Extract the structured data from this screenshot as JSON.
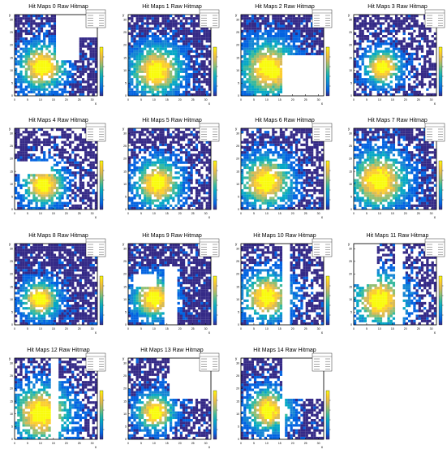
{
  "figure": {
    "panels": [
      {
        "title": "Hit Maps 0 Raw Hitmap"
      },
      {
        "title": "Hit Maps 1 Raw Hitmap"
      },
      {
        "title": "Hit Maps 2 Raw Hitmap"
      },
      {
        "title": "Hit Maps 3 Raw Hitmap"
      },
      {
        "title": "Hit Maps 4 Raw Hitmap"
      },
      {
        "title": "Hit Maps 5 Raw Hitmap"
      },
      {
        "title": "Hit Maps 6 Raw Hitmap"
      },
      {
        "title": "Hit Maps 7 Raw Hitmap"
      },
      {
        "title": "Hit Maps 8 Raw Hitmap"
      },
      {
        "title": "Hit Maps 9 Raw Hitmap"
      },
      {
        "title": "Hit Maps 10 Raw Hitmap"
      },
      {
        "title": "Hit Maps 11 Raw Hitmap"
      },
      {
        "title": "Hit Maps 12 Raw Hitmap"
      },
      {
        "title": "Hit Maps 13 Raw Hitmap"
      },
      {
        "title": "Hit Maps 14 Raw Hitmap"
      }
    ]
  },
  "chart_data": {
    "type": "heatmap",
    "xlabel": "x",
    "ylabel": "y",
    "xlim": [
      0,
      32
    ],
    "ylim": [
      0,
      32
    ],
    "x_ticks": [
      0,
      5,
      10,
      15,
      20,
      25,
      30
    ],
    "y_ticks": [
      0,
      5,
      10,
      15,
      20,
      25,
      30
    ],
    "colormap": [
      "#352a87",
      "#0363e1",
      "#1485d4",
      "#06a7c6",
      "#38b99e",
      "#92bf73",
      "#d9ba56",
      "#fcce2e",
      "#f9fb0e"
    ],
    "hotspot_center": [
      10,
      10
    ],
    "maps": [
      {
        "title": "Hit Maps 0 Raw Hitmap",
        "empty_regions": [
          [
            16,
            23,
            31,
            31
          ],
          [
            16,
            14,
            24,
            22
          ]
        ]
      },
      {
        "title": "Hit Maps 1 Raw Hitmap",
        "empty_regions": []
      },
      {
        "title": "Hit Maps 2 Raw Hitmap",
        "empty_regions": [
          [
            16,
            0,
            31,
            15
          ]
        ]
      },
      {
        "title": "Hit Maps 3 Raw Hitmap",
        "empty_regions": []
      },
      {
        "title": "Hit Maps 4 Raw Hitmap",
        "empty_regions": [
          [
            0,
            14,
            13,
            18
          ]
        ]
      },
      {
        "title": "Hit Maps 5 Raw Hitmap",
        "empty_regions": []
      },
      {
        "title": "Hit Maps 6 Raw Hitmap",
        "empty_regions": []
      },
      {
        "title": "Hit Maps 7 Raw Hitmap",
        "empty_regions": []
      },
      {
        "title": "Hit Maps 8 Raw Hitmap",
        "empty_regions": []
      },
      {
        "title": "Hit Maps 9 Raw Hitmap",
        "empty_regions": [
          [
            14,
            0,
            18,
            22
          ],
          [
            2,
            15,
            10,
            19
          ]
        ]
      },
      {
        "title": "Hit Maps 10 Raw Hitmap",
        "empty_regions": [
          [
            16,
            0,
            18,
            31
          ]
        ]
      },
      {
        "title": "Hit Maps 11 Raw Hitmap",
        "empty_regions": [
          [
            16,
            0,
            18,
            31
          ],
          [
            0,
            16,
            8,
            31
          ]
        ]
      },
      {
        "title": "Hit Maps 12 Raw Hitmap",
        "empty_regions": [
          [
            14,
            0,
            16,
            31
          ]
        ]
      },
      {
        "title": "Hit Maps 13 Raw Hitmap",
        "empty_regions": [
          [
            16,
            16,
            31,
            31
          ]
        ]
      },
      {
        "title": "Hit Maps 14 Raw Hitmap",
        "empty_regions": [
          [
            16,
            16,
            31,
            31
          ],
          [
            15,
            0,
            16,
            15
          ]
        ]
      }
    ],
    "grid": false,
    "legend": "top-right"
  }
}
